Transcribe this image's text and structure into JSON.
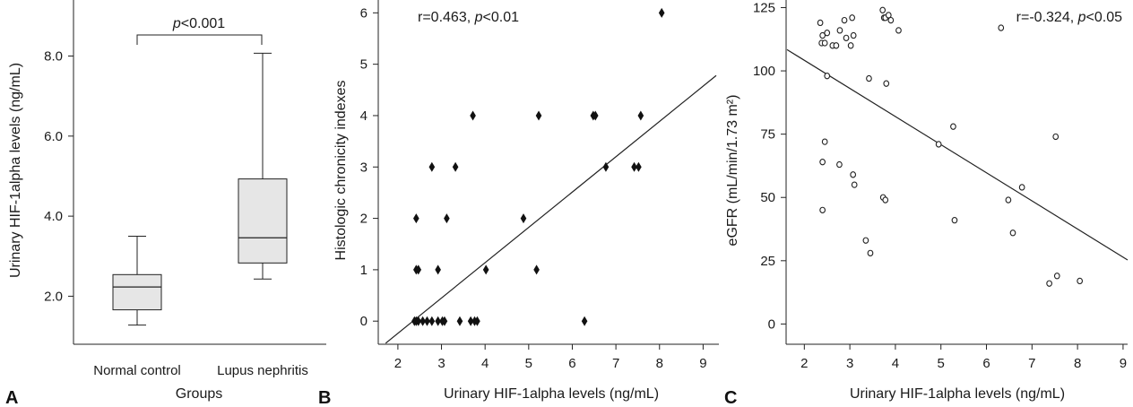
{
  "chart_data": [
    {
      "panel": "A",
      "type": "box",
      "xlabel": "Groups",
      "ylabel": "Urinary HIF-1alpha levels (ng/mL)",
      "categories": [
        "Normal control",
        "Lupus nephritis"
      ],
      "yticks": [
        "2.0",
        "4.0",
        "6.0",
        "8.0"
      ],
      "ylim": [
        0.8,
        9.4
      ],
      "boxes": [
        {
          "min": 1.28,
          "q1": 1.66,
          "median": 2.23,
          "q3": 2.54,
          "max": 3.5
        },
        {
          "min": 2.43,
          "q1": 2.83,
          "median": 3.46,
          "q3": 4.93,
          "max": 8.07
        }
      ],
      "annotation": {
        "italic": "p",
        "rest": "<0.001"
      }
    },
    {
      "panel": "B",
      "type": "scatter",
      "xlabel": "Urinary HIF-1alpha levels (ng/mL)",
      "ylabel": "Histologic chronicity indexes",
      "xticks": [
        "2",
        "3",
        "4",
        "5",
        "6",
        "7",
        "8",
        "9"
      ],
      "yticks": [
        "0",
        "1",
        "2",
        "3",
        "4",
        "5",
        "6"
      ],
      "xlim": [
        1.55,
        9.3
      ],
      "ylim": [
        -0.45,
        6.25
      ],
      "annotation": {
        "lead": "r=0.463, ",
        "italic": "p",
        "rest": "<0.01"
      },
      "fit_line": [
        [
          1.72,
          -0.43
        ],
        [
          9.3,
          4.78
        ]
      ],
      "x": [
        2.38,
        2.42,
        2.47,
        2.57,
        2.67,
        2.78,
        2.92,
        3.02,
        3.07,
        3.42,
        3.67,
        3.76,
        3.82,
        2.42,
        2.47,
        2.92,
        4.02,
        5.18,
        2.42,
        3.12,
        4.88,
        2.78,
        3.32,
        6.77,
        7.42,
        7.52,
        3.72,
        5.23,
        6.48,
        6.53,
        7.57,
        8.05,
        6.28
      ],
      "y": [
        0,
        0,
        0,
        0,
        0,
        0,
        0,
        0,
        0,
        0,
        0,
        0,
        0,
        1,
        1,
        1,
        1,
        1,
        2,
        2,
        2,
        3,
        3,
        3,
        3,
        3,
        4,
        4,
        4,
        4,
        4,
        6,
        0
      ]
    },
    {
      "panel": "C",
      "type": "scatter",
      "xlabel": "Urinary HIF-1alpha levels (ng/mL)",
      "ylabel": "eGFR (mL/min/1.73 m²)",
      "xticks": [
        "2",
        "3",
        "4",
        "5",
        "6",
        "7",
        "8",
        "9"
      ],
      "yticks": [
        "0",
        "25",
        "50",
        "75",
        "100",
        "125"
      ],
      "xlim": [
        1.6,
        9.1
      ],
      "ylim": [
        -8,
        128
      ],
      "annotation": {
        "lead": "r=-0.324, ",
        "italic": "p",
        "rest": "<0.05"
      },
      "fit_line": [
        [
          1.62,
          108.4
        ],
        [
          9.1,
          25.3
        ]
      ],
      "x": [
        2.35,
        2.38,
        2.4,
        2.45,
        2.5,
        2.62,
        2.7,
        2.78,
        2.88,
        2.92,
        3.02,
        3.05,
        3.08,
        3.72,
        3.75,
        3.78,
        3.85,
        3.9,
        4.07,
        6.32,
        2.5,
        3.42,
        3.8,
        2.45,
        5.27,
        4.95,
        7.52,
        2.4,
        2.77,
        3.07,
        3.1,
        3.73,
        3.78,
        6.78,
        6.48,
        2.4,
        5.3,
        6.58,
        3.35,
        3.45,
        7.38,
        7.55,
        8.05
      ],
      "y": [
        119,
        111,
        114,
        111,
        115,
        110,
        110,
        116,
        120,
        113,
        110,
        121,
        114,
        124,
        121,
        121,
        122,
        120,
        116,
        117,
        98,
        97,
        95,
        72,
        78,
        71,
        74,
        64,
        63,
        59,
        55,
        50,
        49,
        54,
        49,
        45,
        41,
        36,
        33,
        28,
        16,
        19,
        17
      ]
    }
  ],
  "panel_letters": [
    "A",
    "B",
    "C"
  ]
}
